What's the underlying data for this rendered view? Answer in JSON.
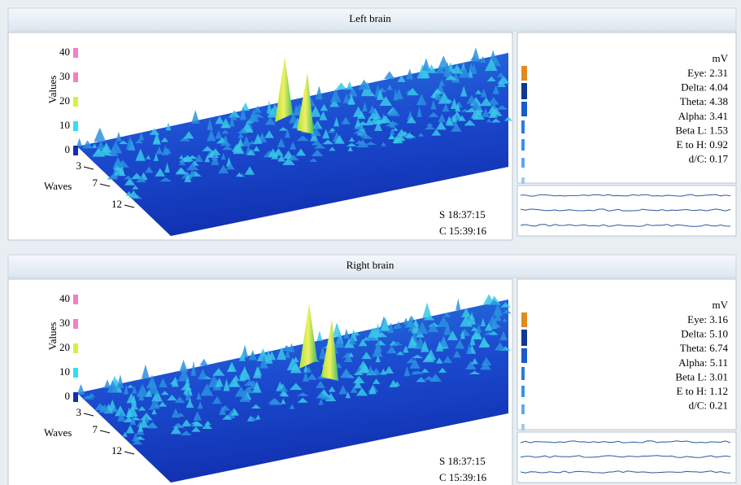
{
  "panels": [
    {
      "title": "Left brain",
      "axis": {
        "y_label": "Values",
        "y_ticks": [
          "0",
          "10",
          "20",
          "30",
          "40"
        ],
        "x_label": "Waves",
        "x_ticks": [
          "3",
          "7",
          "12"
        ]
      },
      "times": [
        "S 18:37:15",
        "C 15:39:16"
      ],
      "unit": "mV",
      "readings": [
        {
          "label": "Eye:",
          "value": "2.31"
        },
        {
          "label": "Delta:",
          "value": "4.04"
        },
        {
          "label": "Theta:",
          "value": "4.38"
        },
        {
          "label": "Alpha:",
          "value": "3.41"
        },
        {
          "label": "Beta L:",
          "value": "1.53"
        },
        {
          "label": "E to H:",
          "value": "0.92"
        },
        {
          "label": "d/C:",
          "value": "0.17"
        }
      ]
    },
    {
      "title": "Right brain",
      "axis": {
        "y_label": "Values",
        "y_ticks": [
          "0",
          "10",
          "20",
          "30",
          "40"
        ],
        "x_label": "Waves",
        "x_ticks": [
          "3",
          "7",
          "12"
        ]
      },
      "times": [
        "S 18:37:15",
        "C 15:39:16"
      ],
      "unit": "mV",
      "readings": [
        {
          "label": "Eye:",
          "value": "3.16"
        },
        {
          "label": "Delta:",
          "value": "5.10"
        },
        {
          "label": "Theta:",
          "value": "6.74"
        },
        {
          "label": "Alpha:",
          "value": "5.11"
        },
        {
          "label": "Beta L:",
          "value": "3.01"
        },
        {
          "label": "E to H:",
          "value": "1.12"
        },
        {
          "label": "d/C:",
          "value": "0.21"
        }
      ]
    }
  ]
}
